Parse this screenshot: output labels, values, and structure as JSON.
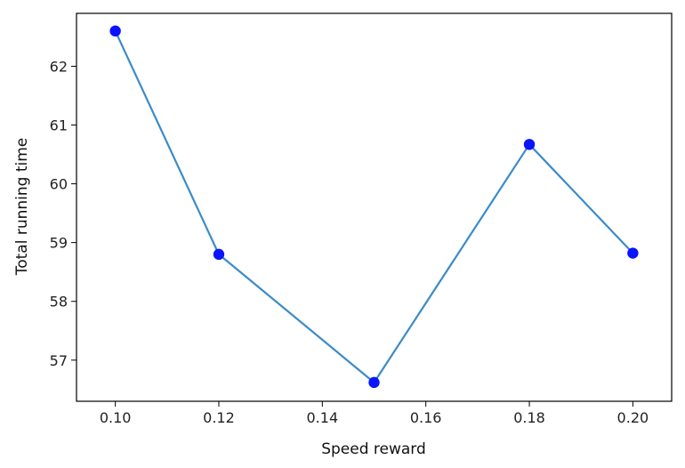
{
  "chart_data": {
    "type": "line",
    "title": "",
    "xlabel": "Speed reward",
    "ylabel": "Total running time",
    "xlim": [
      0.0925,
      0.2075
    ],
    "ylim": [
      56.3,
      62.9
    ],
    "xticks": [
      "0.10",
      "0.12",
      "0.14",
      "0.16",
      "0.18",
      "0.20"
    ],
    "xtick_values": [
      0.1,
      0.12,
      0.14,
      0.16,
      0.18,
      0.2
    ],
    "yticks": [
      "57",
      "58",
      "59",
      "60",
      "61",
      "62"
    ],
    "ytick_values": [
      57,
      58,
      59,
      60,
      61,
      62
    ],
    "grid": false,
    "legend": "none",
    "series": [
      {
        "x": [
          0.1,
          0.12,
          0.15,
          0.18,
          0.2
        ],
        "y": [
          62.6,
          58.8,
          56.62,
          60.67,
          58.82
        ],
        "line_color": "#3b8bc9",
        "marker_color": "#0a14ff"
      }
    ]
  }
}
